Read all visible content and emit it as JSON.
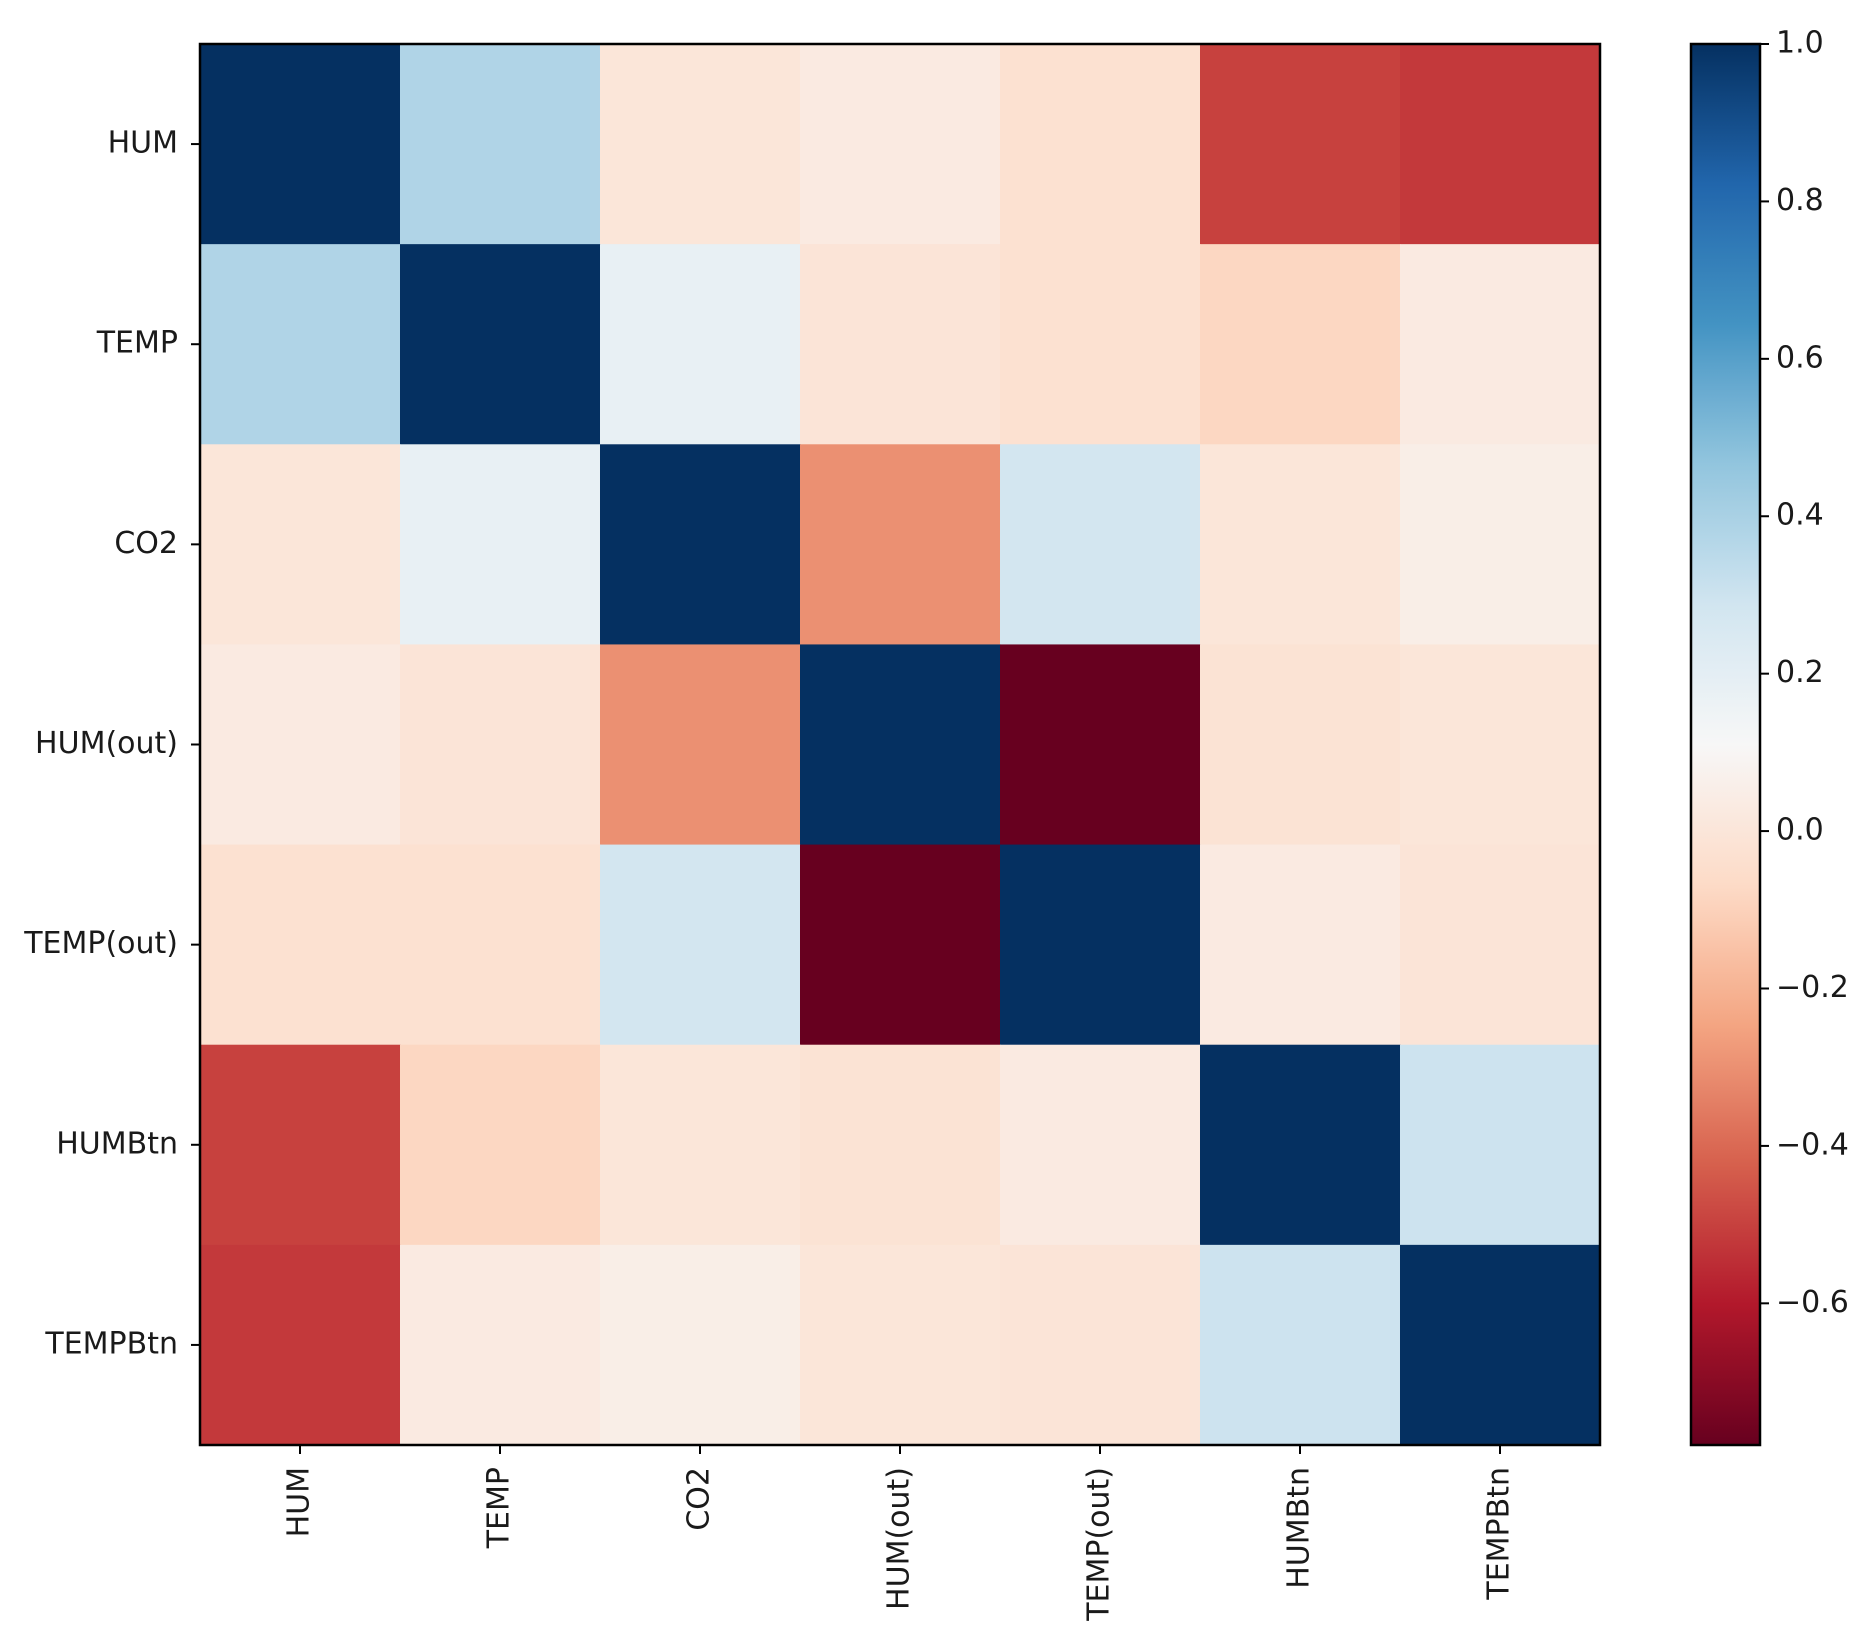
{
  "chart_data": {
    "type": "heatmap",
    "title": "",
    "xlabel": "",
    "ylabel": "",
    "row_labels": [
      "HUM",
      "TEMP",
      "CO2",
      "HUM(out)",
      "TEMP(out)",
      "HUMBtn",
      "TEMPBtn"
    ],
    "col_labels": [
      "HUM",
      "TEMP",
      "CO2",
      "HUM(out)",
      "TEMP(out)",
      "HUMBtn",
      "TEMPBtn"
    ],
    "values": [
      [
        1.0,
        0.38,
        0.0,
        0.03,
        -0.03,
        -0.5,
        -0.52
      ],
      [
        0.38,
        1.0,
        0.18,
        -0.01,
        -0.03,
        -0.08,
        0.03
      ],
      [
        0.0,
        0.18,
        1.0,
        -0.3,
        0.28,
        0.0,
        0.05
      ],
      [
        0.03,
        -0.01,
        -0.3,
        1.0,
        -0.78,
        -0.02,
        0.0
      ],
      [
        -0.03,
        -0.03,
        0.28,
        -0.78,
        1.0,
        0.03,
        -0.01
      ],
      [
        -0.5,
        -0.08,
        0.0,
        -0.02,
        0.03,
        1.0,
        0.3
      ],
      [
        -0.52,
        0.03,
        0.05,
        0.0,
        -0.01,
        0.3,
        1.0
      ]
    ],
    "colormap": "RdBu",
    "vmin": -0.78,
    "vmax": 1.0,
    "colorbar": {
      "ticks": [
        1.0,
        0.8,
        0.6,
        0.4,
        0.2,
        0.0,
        -0.2,
        -0.4,
        -0.6
      ],
      "tick_labels": [
        "1.0",
        "0.8",
        "0.6",
        "0.4",
        "0.2",
        "0.0",
        "−0.2",
        "−0.4",
        "−0.6"
      ]
    },
    "grid": false,
    "legend": "colorbar-right"
  }
}
